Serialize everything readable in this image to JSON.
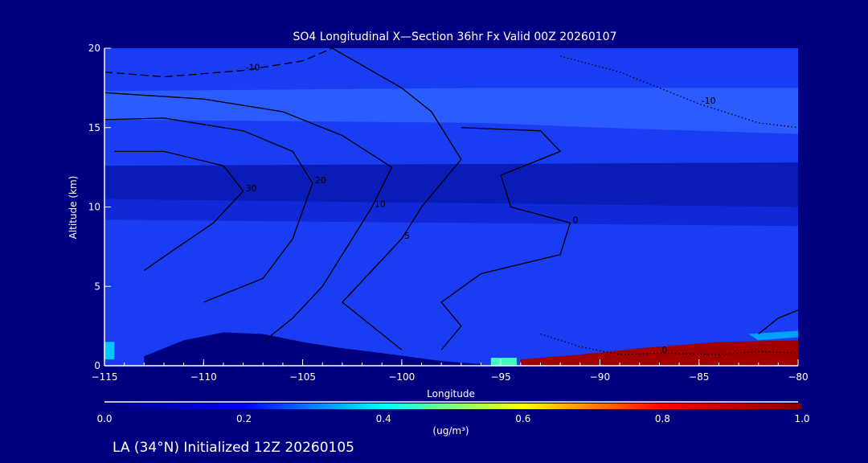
{
  "chart_data": {
    "type": "heatmap",
    "title": "SO4 Longitudinal X—Section 36hr  Fx Valid 00Z 20260107",
    "xlabel": "Longitude",
    "ylabel": "Altitude (km)",
    "xlim": [
      -115,
      -80
    ],
    "ylim": [
      0,
      20
    ],
    "xticks": [
      -115,
      -110,
      -105,
      -100,
      -95,
      -90,
      -85,
      -80
    ],
    "xtick_labels": [
      "−115",
      "−110",
      "−105",
      "−100",
      "−95",
      "−90",
      "−85",
      "−80"
    ],
    "yticks": [
      0,
      5,
      10,
      15,
      20
    ],
    "ytick_labels": [
      "0",
      "5",
      "10",
      "15",
      "20"
    ],
    "colorbar": {
      "label": "(ug/m³)",
      "range": [
        0.0,
        1.0
      ],
      "ticks": [
        "0.0",
        "0.2",
        "0.4",
        "0.6",
        "0.8",
        "1.0"
      ],
      "colors": [
        "#00007f",
        "#0000ff",
        "#00ffff",
        "#ffff00",
        "#ff0000",
        "#800000"
      ]
    },
    "regions": [
      {
        "value": 0.12,
        "color": "#1a3cf2",
        "poly": [
          [
            -115,
            0
          ],
          [
            -80,
            0
          ],
          [
            -80,
            20
          ],
          [
            -115,
            20
          ]
        ]
      },
      {
        "value": 0.17,
        "color": "#2a5cff",
        "poly": [
          [
            -115,
            15.5
          ],
          [
            -96,
            15.3
          ],
          [
            -90,
            15
          ],
          [
            -80,
            14.6
          ],
          [
            -80,
            17.5
          ],
          [
            -96,
            17.5
          ],
          [
            -115,
            17.3
          ]
        ]
      },
      {
        "value": 0.06,
        "color": "#0a1cb8",
        "poly": [
          [
            -115,
            12.6
          ],
          [
            -80,
            12.8
          ],
          [
            -80,
            10
          ],
          [
            -100,
            10.2
          ],
          [
            -115,
            10.5
          ]
        ]
      },
      {
        "value": 0.08,
        "color": "#1028d8",
        "poly": [
          [
            -115,
            10.5
          ],
          [
            -80,
            10
          ],
          [
            -80,
            8.8
          ],
          [
            -115,
            9.2
          ]
        ]
      },
      {
        "value": 0.03,
        "color": "#00007f",
        "poly": [
          [
            -113,
            0
          ],
          [
            -113,
            0.6
          ],
          [
            -111,
            1.6
          ],
          [
            -109,
            2.1
          ],
          [
            -107,
            2
          ],
          [
            -105,
            1.5
          ],
          [
            -103,
            1.1
          ],
          [
            -101,
            0.8
          ],
          [
            -98,
            0.3
          ],
          [
            -96,
            0.1
          ],
          [
            -96,
            0
          ]
        ]
      },
      {
        "value": 0.35,
        "color": "#00c8ff",
        "poly": [
          [
            -115,
            0.4
          ],
          [
            -114.5,
            0.4
          ],
          [
            -114.5,
            1.5
          ],
          [
            -115,
            1.5
          ]
        ]
      },
      {
        "value": 0.45,
        "color": "#40ffc0",
        "poly": [
          [
            -95.5,
            0
          ],
          [
            -94.2,
            0
          ],
          [
            -94.2,
            0.5
          ],
          [
            -95.5,
            0.5
          ]
        ]
      },
      {
        "value": 0.3,
        "color": "#00a0ff",
        "poly": [
          [
            -82,
            1.6
          ],
          [
            -80,
            1.8
          ],
          [
            -80,
            2.2
          ],
          [
            -82.5,
            2
          ]
        ]
      },
      {
        "value": 0.95,
        "color": "#a00000",
        "poly": [
          [
            -94,
            0
          ],
          [
            -80,
            0
          ],
          [
            -80,
            1.6
          ],
          [
            -84,
            1.5
          ],
          [
            -88,
            1.1
          ],
          [
            -91,
            0.7
          ],
          [
            -94,
            0.4
          ]
        ]
      }
    ],
    "contours": [
      {
        "label": "-10",
        "style": "dashed",
        "pts": [
          [
            -115,
            18.5
          ],
          [
            -112,
            18.2
          ],
          [
            -108,
            18.6
          ],
          [
            -105,
            19.2
          ],
          [
            -103.5,
            20
          ]
        ]
      },
      {
        "label": "10",
        "style": "solid",
        "pts": [
          [
            -115,
            17.2
          ],
          [
            -110,
            16.8
          ],
          [
            -106,
            16
          ],
          [
            -103,
            14.5
          ],
          [
            -100.5,
            12.5
          ],
          [
            -101.5,
            10
          ],
          [
            -103,
            7
          ],
          [
            -104,
            5
          ],
          [
            -105.5,
            3
          ],
          [
            -107,
            1.5
          ]
        ]
      },
      {
        "label": "20",
        "style": "solid",
        "pts": [
          [
            -115,
            15.5
          ],
          [
            -112,
            15.6
          ],
          [
            -108,
            14.8
          ],
          [
            -105.5,
            13.5
          ],
          [
            -104.5,
            11.5
          ],
          [
            -105.5,
            8
          ],
          [
            -107,
            5.5
          ],
          [
            -110,
            4
          ]
        ]
      },
      {
        "label": "30",
        "style": "solid",
        "pts": [
          [
            -114.5,
            13.5
          ],
          [
            -112,
            13.5
          ],
          [
            -109,
            12.6
          ],
          [
            -108,
            11
          ],
          [
            -109.5,
            9
          ],
          [
            -111.5,
            7.3
          ],
          [
            -113,
            6
          ]
        ]
      },
      {
        "label": "5",
        "style": "solid",
        "pts": [
          [
            -103.5,
            20
          ],
          [
            -100,
            17.5
          ],
          [
            -98.5,
            16
          ],
          [
            -97,
            13
          ],
          [
            -99,
            10
          ],
          [
            -100,
            8
          ],
          [
            -101.5,
            6
          ],
          [
            -103,
            4
          ],
          [
            -101,
            2
          ],
          [
            -100,
            1
          ]
        ]
      },
      {
        "label": "0",
        "style": "solid",
        "pts": [
          [
            -97,
            15
          ],
          [
            -93,
            14.8
          ],
          [
            -92,
            13.5
          ],
          [
            -95,
            12
          ],
          [
            -94.5,
            10
          ],
          [
            -91.5,
            9
          ],
          [
            -92,
            7
          ],
          [
            -96,
            5.8
          ],
          [
            -98,
            4
          ],
          [
            -97,
            2.5
          ],
          [
            -98,
            1
          ]
        ]
      },
      {
        "label": "-10",
        "style": "dotted",
        "pts": [
          [
            -92,
            19.5
          ],
          [
            -89,
            18.5
          ],
          [
            -85,
            16.5
          ],
          [
            -82,
            15.3
          ],
          [
            -80,
            15
          ]
        ]
      },
      {
        "label": "0",
        "style": "dotted",
        "pts": [
          [
            -93,
            2
          ],
          [
            -91,
            1.2
          ],
          [
            -89,
            0.7
          ],
          [
            -87,
            0.8
          ],
          [
            -84,
            0.7
          ],
          [
            -82,
            0.9
          ],
          [
            -80,
            0.8
          ]
        ]
      },
      {
        "label": "",
        "style": "solid",
        "pts": [
          [
            -82,
            2
          ],
          [
            -81,
            3
          ],
          [
            -80,
            3.5
          ]
        ]
      }
    ]
  },
  "footer": {
    "caption": "LA (34°N) Initialized 12Z 20260105"
  }
}
